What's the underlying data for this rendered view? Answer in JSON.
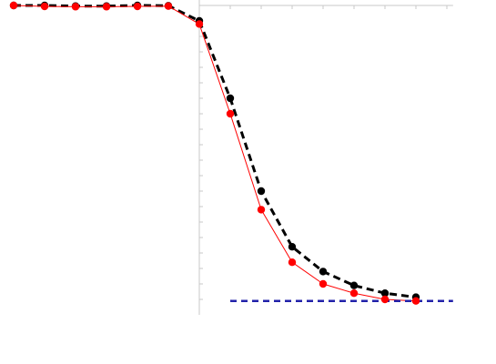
{
  "chart_data": {
    "type": "line",
    "title": "",
    "xlabel": "",
    "ylabel": "",
    "xlim": [
      -6.3,
      8.2
    ],
    "ylim": [
      0,
      1.02
    ],
    "grid": false,
    "legend": null,
    "x_axis_position_y": 1.0,
    "y_axis_position_x": 0.0,
    "x_ticks": [
      1,
      2,
      3,
      4,
      5,
      6,
      7,
      8
    ],
    "y_ticks": [
      0.05,
      0.1,
      0.15,
      0.2,
      0.25,
      0.3,
      0.35,
      0.4,
      0.45,
      0.5,
      0.55,
      0.6,
      0.65,
      0.7,
      0.75,
      0.8,
      0.85,
      0.9,
      0.95
    ],
    "series": [
      {
        "style": "dashed",
        "color": "#000000",
        "marker_color": "#000000",
        "x": [
          -6,
          -5,
          -4,
          -3,
          -2,
          -1,
          0,
          1,
          2,
          3,
          4,
          5,
          6,
          7
        ],
        "y": [
          1.0,
          1.0,
          0.998,
          0.998,
          1.0,
          0.999,
          0.95,
          0.7,
          0.4,
          0.22,
          0.14,
          0.095,
          0.07,
          0.057
        ]
      },
      {
        "style": "solid",
        "color": "#ff0000",
        "marker_color": "#ff0000",
        "x": [
          -6,
          -5,
          -4,
          -3,
          -2,
          -1,
          0,
          1,
          2,
          3,
          4,
          5,
          6,
          7
        ],
        "y": [
          1.0,
          0.997,
          0.996,
          0.996,
          0.997,
          0.998,
          0.94,
          0.65,
          0.34,
          0.17,
          0.1,
          0.07,
          0.05,
          0.045
        ]
      },
      {
        "style": "dashed",
        "color": "#2222aa",
        "marker_color": null,
        "x": [
          1,
          8.2
        ],
        "y": [
          0.045,
          0.045
        ]
      }
    ]
  }
}
